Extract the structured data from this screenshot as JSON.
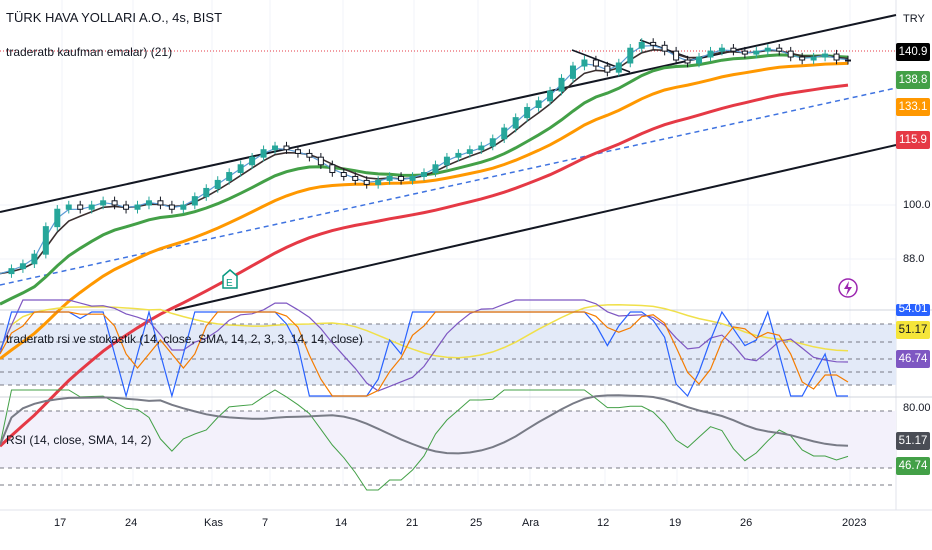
{
  "header": {
    "symbol": "TÜRK HAVA YOLLARI A.O., 4s, BIST",
    "indicator": "traderatb kaufman emalar) (21)",
    "currency": "TRY"
  },
  "stoch_pane": {
    "title": "traderatb rsi ve stokastik (14, close, SMA, 14, 2, 3, 3, 14, 14, close)",
    "labels": [
      {
        "v": "54.01",
        "c": "#2962ff"
      },
      {
        "v": "51.17",
        "c": "#f5e53a",
        "dark": true
      },
      {
        "v": "46.74",
        "c": "#7e57c2"
      }
    ]
  },
  "rsi_pane": {
    "title": "RSI (14, close, SMA, 14, 2)",
    "top_tick": "80.00",
    "labels": [
      {
        "v": "51.17",
        "c": "#4a4d55"
      },
      {
        "v": "46.74",
        "c": "#43a047"
      }
    ]
  },
  "chart_data": {
    "type": "candlestick",
    "title": "TÜRK HAVA YOLLARI A.O., 4s, BIST",
    "price_ticks": [
      "100.0",
      "88.0"
    ],
    "price_labels": [
      {
        "v": "140.9",
        "c": "#000000"
      },
      {
        "v": "138.8",
        "c": "#43a047"
      },
      {
        "v": "133.1",
        "c": "#ff9800"
      },
      {
        "v": "115.9",
        "c": "#e53945"
      }
    ],
    "x_ticks": [
      "17",
      "24",
      "Kas",
      "7",
      "14",
      "21",
      "25",
      "Ara",
      "12",
      "19",
      "26",
      "2023"
    ],
    "closes": [
      85,
      86,
      87,
      89,
      95,
      99,
      100,
      99,
      100,
      101,
      100,
      99,
      100,
      101,
      100,
      99,
      100,
      102,
      104,
      106,
      108,
      110,
      112,
      114,
      115,
      114,
      113,
      112,
      110,
      108,
      107,
      106,
      105,
      106,
      107,
      106,
      107,
      108,
      110,
      112,
      113,
      114,
      115,
      117,
      120,
      123,
      126,
      128,
      131,
      135,
      139,
      141,
      139,
      137,
      140,
      145,
      147,
      146,
      144,
      141,
      140,
      142,
      144,
      145,
      144,
      143,
      144,
      145,
      144,
      142,
      141,
      142,
      143,
      141,
      140.9
    ],
    "events": [
      "E"
    ]
  }
}
